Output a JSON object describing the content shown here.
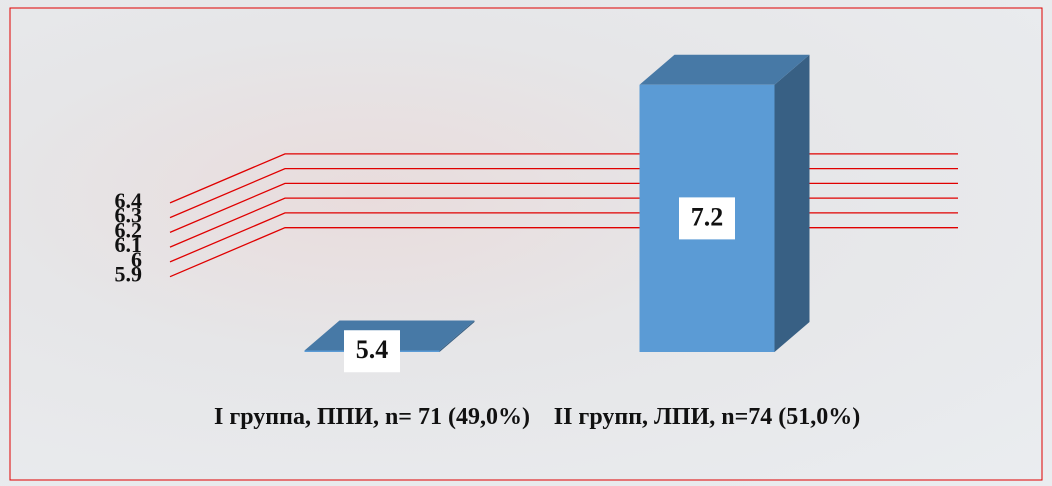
{
  "chart_data": {
    "type": "bar3d",
    "categories": [
      "I группа, ППИ, n= 71 (49,0%)",
      "II групп, ЛПИ,   n=74 (51,0%)"
    ],
    "values": [
      5.4,
      7.2
    ],
    "color": "#5b9bd5",
    "ylim": [
      5.2,
      7.3
    ],
    "yticks": [
      5.9,
      6,
      6.1,
      6.2,
      6.3,
      6.4
    ],
    "grid": true,
    "grid_color": "#e00000"
  }
}
